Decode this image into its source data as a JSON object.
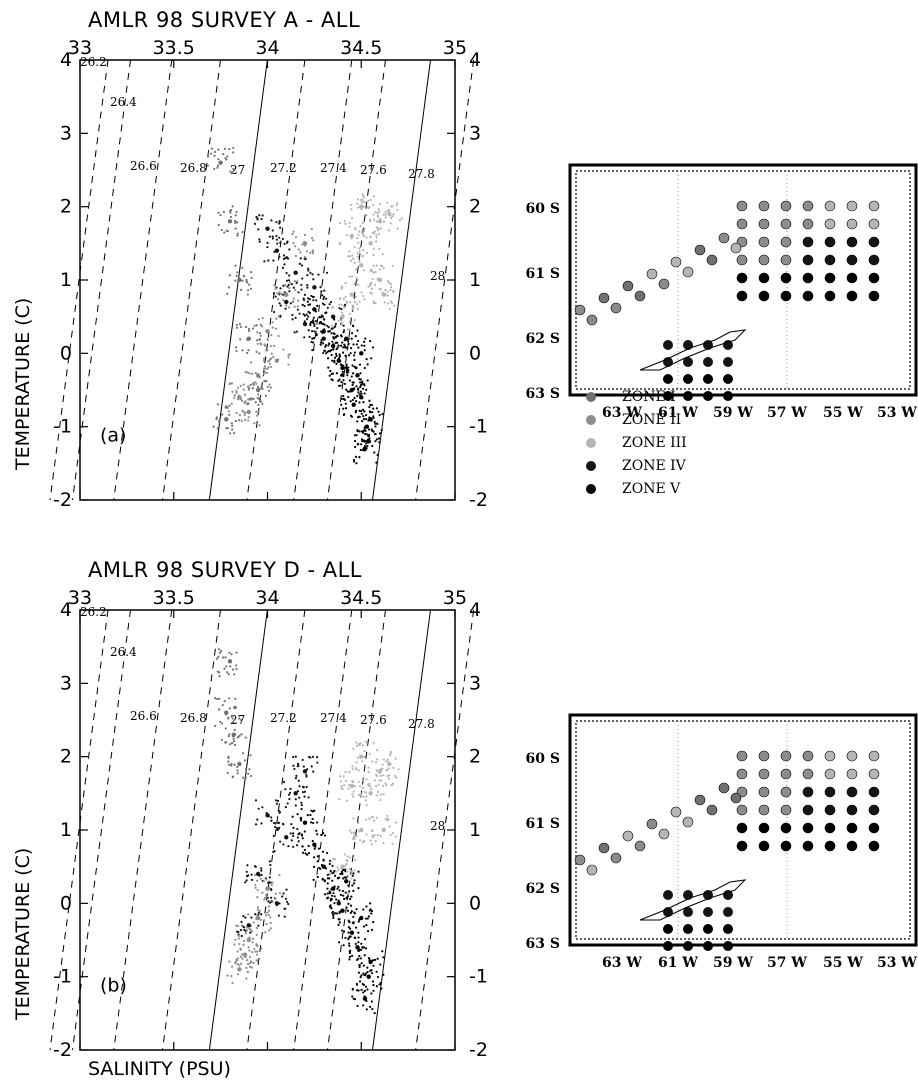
{
  "colors": {
    "zone1": "#707070",
    "zone2": "#8c8c8c",
    "zone3": "#b5b5b5",
    "zone4": "#151515",
    "zone5": "#000000"
  },
  "xlabel": "SALINITY (PSU)",
  "ylabel": "TEMPERATURE (C)",
  "legend": [
    {
      "label": "ZONE I",
      "color_key": "zone1"
    },
    {
      "label": "ZONE II",
      "color_key": "zone2"
    },
    {
      "label": "ZONE III",
      "color_key": "zone3"
    },
    {
      "label": "ZONE IV",
      "color_key": "zone4"
    },
    {
      "label": "ZONE V",
      "color_key": "zone5"
    }
  ],
  "chart_data": [
    {
      "type": "scatter",
      "title": "AMLR 98  SURVEY A - ALL",
      "panel_label": "(a)",
      "xlim": [
        33,
        35
      ],
      "ylim": [
        -2,
        4
      ],
      "xticks": [
        "33",
        "33.5",
        "34",
        "34.5",
        "35"
      ],
      "yticks": [
        "-2",
        "-1",
        "0",
        "1",
        "2",
        "3",
        "4"
      ],
      "isopycnals": [
        "26.2",
        "26.4",
        "26.6",
        "26.8",
        "27",
        "27.2",
        "27.4",
        "27.6",
        "27.8",
        "28"
      ],
      "series": [
        {
          "zone": "ZONE V",
          "x": [
            34.52,
            34.55,
            34.45,
            34.4,
            34.35,
            34.3,
            34.25,
            34.5,
            34.48,
            34.42,
            34.5,
            34.53,
            34.54,
            34.46,
            34.38
          ],
          "y": [
            -1.3,
            -0.9,
            -0.5,
            -0.2,
            0.1,
            0.3,
            0.6,
            -0.6,
            -0.3,
            0.2,
            0.0,
            -1.0,
            -1.2,
            -0.7,
            -0.1
          ]
        },
        {
          "zone": "ZONE IV",
          "x": [
            34.2,
            34.1,
            34.3,
            34.25,
            34.15,
            34.35,
            34.05,
            34.0
          ],
          "y": [
            0.4,
            0.7,
            0.2,
            0.9,
            1.1,
            0.5,
            1.4,
            1.7
          ]
        },
        {
          "zone": "ZONE III",
          "x": [
            34.4,
            34.45,
            34.5,
            34.55,
            34.6,
            34.65,
            34.5,
            34.6,
            34.45,
            34.62
          ],
          "y": [
            0.5,
            0.8,
            1.2,
            1.5,
            1.8,
            1.9,
            2.0,
            1.0,
            1.6,
            0.8
          ]
        },
        {
          "zone": "ZONE II",
          "x": [
            33.9,
            33.95,
            34.0,
            34.1,
            33.85,
            34.2,
            34.05
          ],
          "y": [
            -0.8,
            -0.3,
            0.3,
            0.8,
            -0.6,
            1.5,
            -0.1
          ]
        },
        {
          "zone": "ZONE I",
          "x": [
            33.75,
            33.8,
            33.85,
            33.9,
            33.78,
            33.95
          ],
          "y": [
            2.6,
            1.8,
            1.0,
            0.2,
            -0.9,
            -0.5
          ]
        }
      ]
    },
    {
      "type": "scatter",
      "title": "AMLR 98  SURVEY D - ALL",
      "panel_label": "(b)",
      "xlim": [
        33,
        35
      ],
      "ylim": [
        -2,
        4
      ],
      "xticks": [
        "33",
        "33.5",
        "34",
        "34.5",
        "35"
      ],
      "yticks": [
        "-2",
        "-1",
        "0",
        "1",
        "2",
        "3",
        "4"
      ],
      "isopycnals": [
        "26.2",
        "26.4",
        "26.6",
        "26.8",
        "27",
        "27.2",
        "27.4",
        "27.6",
        "27.8",
        "28"
      ],
      "series": [
        {
          "zone": "ZONE V",
          "x": [
            34.52,
            34.55,
            34.45,
            34.4,
            34.35,
            34.3,
            34.25,
            34.2,
            34.48,
            34.5,
            34.54,
            34.42,
            34.38
          ],
          "y": [
            -1.3,
            -0.8,
            -0.4,
            -0.1,
            0.2,
            0.5,
            0.8,
            1.1,
            -0.6,
            -0.2,
            -1.0,
            0.3,
            0.0
          ]
        },
        {
          "zone": "ZONE IV",
          "x": [
            34.1,
            34.0,
            33.95,
            34.15,
            34.05,
            33.9,
            34.2
          ],
          "y": [
            0.9,
            1.2,
            0.4,
            1.5,
            0.0,
            -0.3,
            1.8
          ]
        },
        {
          "zone": "ZONE III",
          "x": [
            34.4,
            34.5,
            34.55,
            34.6,
            34.65,
            34.5,
            34.62,
            34.45
          ],
          "y": [
            0.5,
            1.0,
            1.5,
            1.8,
            1.9,
            2.0,
            1.0,
            1.6
          ]
        },
        {
          "zone": "ZONE II",
          "x": [
            33.85,
            33.9,
            33.95,
            34.0,
            33.88
          ],
          "y": [
            -0.9,
            -0.5,
            -0.2,
            0.2,
            -0.7
          ]
        },
        {
          "zone": "ZONE I",
          "x": [
            33.8,
            33.78,
            33.82,
            33.85
          ],
          "y": [
            3.3,
            2.6,
            2.3,
            1.9
          ]
        }
      ]
    }
  ],
  "maps": [
    {
      "lat_labels": [
        "60 S",
        "61 S",
        "62 S",
        "63 S"
      ],
      "lon_labels": [
        "63 W",
        "61 W",
        "59 W",
        "57 W",
        "55 W",
        "53 W"
      ]
    },
    {
      "lat_labels": [
        "60 S",
        "61 S",
        "62 S",
        "63 S"
      ],
      "lon_labels": [
        "63 W",
        "61 W",
        "59 W",
        "57 W",
        "55 W",
        "53 W"
      ]
    }
  ]
}
